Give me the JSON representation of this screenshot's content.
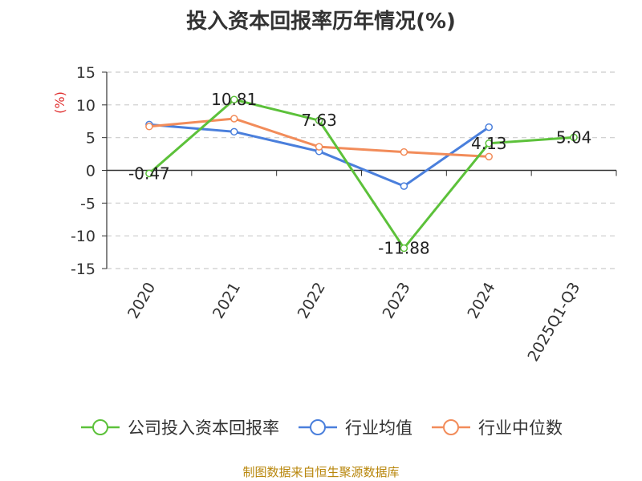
{
  "chart_data": {
    "type": "line",
    "title": "投入资本回报率历年情况(%)",
    "ylabel": "(%)",
    "ylim": [
      -15,
      15
    ],
    "yticks": [
      15,
      10,
      5,
      0,
      -5,
      -10,
      -15
    ],
    "categories": [
      "2020",
      "2021",
      "2022",
      "2023",
      "2024",
      "2025Q1-Q3"
    ],
    "grid": true,
    "legend_position": "bottom",
    "series": [
      {
        "name": "公司投入资本回报率",
        "color": "#5cc13a",
        "values": [
          -0.47,
          10.81,
          7.63,
          -11.88,
          4.13,
          5.04
        ],
        "labels": [
          "-0.47",
          "10.81",
          "7.63",
          "-11.88",
          "4.13",
          "5.04"
        ]
      },
      {
        "name": "行业均值",
        "color": "#4a7fdc",
        "values": [
          7.0,
          5.9,
          2.9,
          -2.4,
          6.6,
          null
        ]
      },
      {
        "name": "行业中位数",
        "color": "#f28c5a",
        "values": [
          6.7,
          7.9,
          3.6,
          2.8,
          2.1,
          null
        ]
      }
    ]
  },
  "source": "制图数据来自恒生聚源数据库"
}
